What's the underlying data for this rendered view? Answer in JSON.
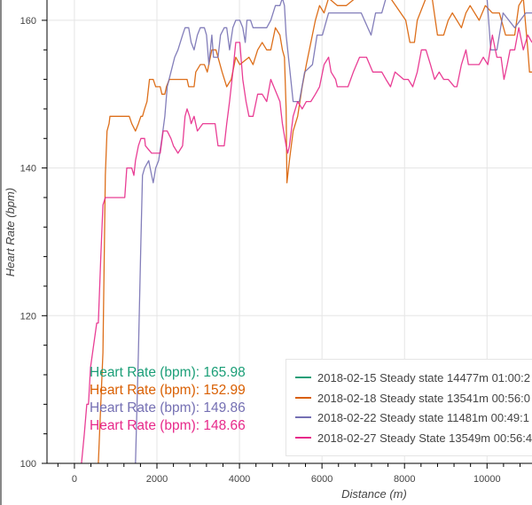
{
  "chart_data": {
    "type": "line",
    "title": "",
    "xlabel": "Distance (m)",
    "ylabel": "Heart Rate (bpm)",
    "xlim": [
      -665,
      11090
    ],
    "ylim": [
      100,
      162.75
    ],
    "xticks": [
      0,
      2000,
      4000,
      6000,
      8000,
      10000
    ],
    "xtick_labels": [
      "0",
      "2000",
      "4000",
      "6000",
      "8000",
      "10000"
    ],
    "yticks": [
      100,
      120,
      140,
      160
    ],
    "ytick_labels": [
      "100",
      "120",
      "140",
      "160"
    ],
    "grid": true,
    "legend_position": "bottom-right",
    "series": [
      {
        "name": "2018-02-15 Steady state 14477m 01:00:2",
        "color": "#1b9e77",
        "points": []
      },
      {
        "name": "2018-02-18 Steady state 13541m 00:56:0",
        "color": "#d95f02",
        "points": [
          [
            580,
            100
          ],
          [
            690,
            115
          ],
          [
            750,
            139
          ],
          [
            790,
            145
          ],
          [
            840,
            146
          ],
          [
            860,
            147
          ],
          [
            1330,
            147
          ],
          [
            1390,
            146
          ],
          [
            1480,
            145
          ],
          [
            1550,
            146
          ],
          [
            1610,
            147
          ],
          [
            1650,
            147
          ],
          [
            1700,
            148
          ],
          [
            1760,
            149
          ],
          [
            1820,
            152
          ],
          [
            1910,
            152
          ],
          [
            1970,
            151
          ],
          [
            2080,
            151
          ],
          [
            2120,
            150
          ],
          [
            2190,
            150
          ],
          [
            2230,
            151
          ],
          [
            2300,
            152
          ],
          [
            2730,
            152
          ],
          [
            2770,
            151
          ],
          [
            2900,
            151
          ],
          [
            2940,
            153
          ],
          [
            3050,
            154
          ],
          [
            3150,
            154
          ],
          [
            3220,
            153
          ],
          [
            3330,
            156
          ],
          [
            3430,
            156
          ],
          [
            3580,
            153
          ],
          [
            3690,
            151
          ],
          [
            3800,
            152
          ],
          [
            3910,
            155
          ],
          [
            4010,
            154
          ],
          [
            4230,
            155
          ],
          [
            4330,
            154
          ],
          [
            4440,
            156
          ],
          [
            4550,
            157
          ],
          [
            4660,
            156
          ],
          [
            4760,
            156
          ],
          [
            4870,
            159
          ],
          [
            4980,
            158
          ],
          [
            5040,
            156
          ],
          [
            5090,
            155
          ],
          [
            5130,
            148
          ],
          [
            5150,
            138
          ],
          [
            5210,
            141
          ],
          [
            5300,
            145
          ],
          [
            5410,
            147
          ],
          [
            5520,
            151
          ],
          [
            5620,
            154
          ],
          [
            5730,
            157
          ],
          [
            5840,
            160
          ],
          [
            5940,
            162
          ],
          [
            6050,
            161
          ],
          [
            6160,
            163
          ],
          [
            6370,
            162
          ],
          [
            6590,
            162
          ],
          [
            6810,
            163
          ],
          [
            7230,
            163
          ],
          [
            7660,
            163
          ],
          [
            8030,
            160
          ],
          [
            8130,
            157
          ],
          [
            8240,
            157
          ],
          [
            8310,
            160
          ],
          [
            8520,
            163
          ],
          [
            8670,
            163
          ],
          [
            8800,
            158
          ],
          [
            8950,
            158
          ],
          [
            9060,
            160
          ],
          [
            9160,
            161
          ],
          [
            9380,
            159
          ],
          [
            9490,
            161
          ],
          [
            9590,
            162
          ],
          [
            9810,
            160
          ],
          [
            9960,
            162
          ],
          [
            10130,
            161
          ],
          [
            10300,
            161
          ],
          [
            10450,
            158
          ],
          [
            10670,
            158
          ],
          [
            10770,
            162
          ],
          [
            10880,
            163
          ],
          [
            10990,
            156
          ],
          [
            11030,
            153
          ],
          [
            11090,
            153
          ]
        ]
      },
      {
        "name": "2018-02-22 Steady state 11481m 00:49:1",
        "color": "#7570b3",
        "points": [
          [
            1480,
            100
          ],
          [
            1550,
            115
          ],
          [
            1610,
            130
          ],
          [
            1650,
            139
          ],
          [
            1700,
            140
          ],
          [
            1800,
            141
          ],
          [
            1870,
            139
          ],
          [
            1910,
            138
          ],
          [
            1970,
            140
          ],
          [
            2040,
            141
          ],
          [
            2120,
            144
          ],
          [
            2190,
            147
          ],
          [
            2250,
            151
          ],
          [
            2340,
            153
          ],
          [
            2430,
            155
          ],
          [
            2510,
            156
          ],
          [
            2620,
            158
          ],
          [
            2680,
            159
          ],
          [
            2770,
            159
          ],
          [
            2830,
            157
          ],
          [
            2900,
            156
          ],
          [
            2980,
            158
          ],
          [
            3050,
            159
          ],
          [
            3150,
            159
          ],
          [
            3200,
            158
          ],
          [
            3260,
            154
          ],
          [
            3330,
            158
          ],
          [
            3370,
            155
          ],
          [
            3480,
            155
          ],
          [
            3540,
            158
          ],
          [
            3630,
            159
          ],
          [
            3690,
            159
          ],
          [
            3760,
            156
          ],
          [
            3840,
            159
          ],
          [
            3910,
            160
          ],
          [
            4010,
            160
          ],
          [
            4080,
            159
          ],
          [
            4140,
            157
          ],
          [
            4180,
            160
          ],
          [
            4270,
            160
          ],
          [
            4330,
            159
          ],
          [
            4660,
            159
          ],
          [
            4760,
            160
          ],
          [
            4870,
            162
          ],
          [
            4980,
            162
          ],
          [
            5040,
            163
          ],
          [
            5090,
            162
          ],
          [
            5130,
            158
          ],
          [
            5150,
            157
          ],
          [
            5300,
            149
          ],
          [
            5450,
            149
          ],
          [
            5580,
            153
          ],
          [
            5770,
            154
          ],
          [
            5880,
            158
          ],
          [
            6010,
            158
          ],
          [
            6160,
            161
          ],
          [
            6370,
            161
          ],
          [
            6650,
            161
          ],
          [
            6950,
            161
          ],
          [
            7190,
            158
          ],
          [
            7300,
            161
          ],
          [
            7450,
            161
          ],
          [
            7550,
            163
          ],
          [
            8000,
            163
          ],
          [
            10000,
            163
          ],
          [
            10090,
            156
          ],
          [
            10240,
            156
          ],
          [
            10390,
            161
          ],
          [
            10670,
            159
          ],
          [
            10940,
            161
          ],
          [
            11090,
            161
          ]
        ]
      },
      {
        "name": "2018-02-27 Steady State 13549m 00:56:4",
        "color": "#e7298a",
        "points": [
          [
            170,
            100
          ],
          [
            240,
            104
          ],
          [
            300,
            108
          ],
          [
            340,
            108
          ],
          [
            390,
            113
          ],
          [
            540,
            119
          ],
          [
            580,
            119
          ],
          [
            640,
            128
          ],
          [
            690,
            135
          ],
          [
            750,
            136
          ],
          [
            880,
            136
          ],
          [
            1220,
            136
          ],
          [
            1270,
            140
          ],
          [
            1390,
            140
          ],
          [
            1440,
            139
          ],
          [
            1480,
            141
          ],
          [
            1550,
            143
          ],
          [
            1610,
            144
          ],
          [
            1700,
            144
          ],
          [
            1720,
            143
          ],
          [
            1870,
            142
          ],
          [
            2080,
            142
          ],
          [
            2150,
            145
          ],
          [
            2250,
            145
          ],
          [
            2340,
            144
          ],
          [
            2400,
            143
          ],
          [
            2510,
            142
          ],
          [
            2620,
            143
          ],
          [
            2680,
            147
          ],
          [
            2730,
            148
          ],
          [
            2790,
            147
          ],
          [
            2830,
            146
          ],
          [
            2900,
            147
          ],
          [
            2980,
            145
          ],
          [
            3110,
            146
          ],
          [
            3410,
            146
          ],
          [
            3480,
            143
          ],
          [
            3630,
            143
          ],
          [
            3690,
            146
          ],
          [
            3760,
            149
          ],
          [
            3840,
            153
          ],
          [
            3910,
            157
          ],
          [
            4010,
            157
          ],
          [
            4080,
            152
          ],
          [
            4160,
            149
          ],
          [
            4230,
            147
          ],
          [
            4330,
            147
          ],
          [
            4440,
            150
          ],
          [
            4550,
            150
          ],
          [
            4660,
            149
          ],
          [
            4760,
            152
          ],
          [
            4980,
            149
          ],
          [
            5040,
            146
          ],
          [
            5130,
            143
          ],
          [
            5170,
            142
          ],
          [
            5210,
            143
          ],
          [
            5300,
            147
          ],
          [
            5410,
            149
          ],
          [
            5520,
            148
          ],
          [
            5620,
            149
          ],
          [
            5730,
            149
          ],
          [
            5840,
            150
          ],
          [
            5940,
            151
          ],
          [
            6050,
            154
          ],
          [
            6160,
            155
          ],
          [
            6220,
            153
          ],
          [
            6330,
            152
          ],
          [
            6370,
            151
          ],
          [
            6630,
            151
          ],
          [
            6760,
            153
          ],
          [
            6910,
            155
          ],
          [
            7080,
            155
          ],
          [
            7230,
            153
          ],
          [
            7450,
            153
          ],
          [
            7550,
            152
          ],
          [
            7660,
            151
          ],
          [
            7770,
            153
          ],
          [
            7980,
            152
          ],
          [
            8090,
            152
          ],
          [
            8200,
            151
          ],
          [
            8310,
            153
          ],
          [
            8410,
            156
          ],
          [
            8520,
            156
          ],
          [
            8630,
            154
          ],
          [
            8730,
            152
          ],
          [
            8840,
            153
          ],
          [
            8950,
            152
          ],
          [
            9060,
            152
          ],
          [
            9210,
            151
          ],
          [
            9270,
            151
          ],
          [
            9380,
            154
          ],
          [
            9490,
            156
          ],
          [
            9550,
            154
          ],
          [
            9810,
            154
          ],
          [
            9910,
            155
          ],
          [
            10020,
            154
          ],
          [
            10130,
            158
          ],
          [
            10240,
            155
          ],
          [
            10340,
            155
          ],
          [
            10410,
            152
          ],
          [
            10490,
            154
          ],
          [
            10560,
            156
          ],
          [
            10670,
            156
          ],
          [
            10770,
            159
          ],
          [
            10880,
            156
          ],
          [
            10990,
            158
          ],
          [
            11090,
            157
          ]
        ]
      }
    ],
    "annotations": [
      {
        "text": "Heart Rate (bpm): 165.98",
        "color": "#1b9e77"
      },
      {
        "text": "Heart Rate (bpm): 152.99",
        "color": "#d95f02"
      },
      {
        "text": "Heart Rate (bpm): 149.86",
        "color": "#7570b3"
      },
      {
        "text": "Heart Rate (bpm): 148.66",
        "color": "#e7298a"
      }
    ]
  }
}
